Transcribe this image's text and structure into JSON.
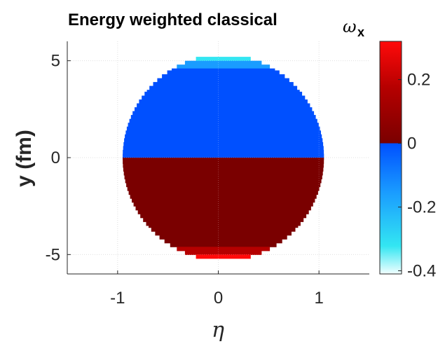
{
  "chart_data": {
    "type": "heatmap",
    "title": "Energy weighted classical",
    "title_symbol": "ω",
    "title_subscript": "x",
    "xlabel": "η",
    "ylabel": "y (fm)",
    "xlim": [
      -1.5,
      1.5
    ],
    "ylim": [
      -6,
      6
    ],
    "xticks": [
      "-1",
      "0",
      "1"
    ],
    "yticks": [
      "5",
      "0",
      "-5"
    ],
    "grid": true,
    "colorbar": {
      "range": [
        -0.41,
        0.32
      ],
      "ticks": [
        "0.2",
        "0",
        "-0.2",
        "-0.4"
      ],
      "colormap": "blue-cyan below zero, dark red to red above zero"
    },
    "region": {
      "shape": "ellipse",
      "center": [
        0.05,
        0
      ],
      "half_width_eta": 1.0,
      "half_height_y": 5.3
    },
    "bands": [
      {
        "y_from": 5.0,
        "y_to": 5.4,
        "value": -0.3
      },
      {
        "y_from": 4.6,
        "y_to": 5.0,
        "value": -0.12
      },
      {
        "y_from": 3.5,
        "y_to": 4.6,
        "value": -0.06
      },
      {
        "y_from": 0.0,
        "y_to": 3.5,
        "value": -0.03
      },
      {
        "y_from": -3.5,
        "y_to": 0.0,
        "value": 0.03
      },
      {
        "y_from": -4.6,
        "y_to": -3.5,
        "value": 0.06
      },
      {
        "y_from": -5.0,
        "y_to": -4.6,
        "value": 0.14
      },
      {
        "y_from": -5.4,
        "y_to": -5.0,
        "value": 0.3
      }
    ],
    "colors": {
      "neg_small": "#0050ff",
      "neg_mid": "#1a9cff",
      "neg_large": "#33e6f2",
      "neg_min": "#f2ffff",
      "pos_small": "#7a0000",
      "pos_mid": "#b50000",
      "pos_max": "#ff0a0a",
      "axis": "#262626",
      "grid": "#d9d9d9"
    }
  }
}
